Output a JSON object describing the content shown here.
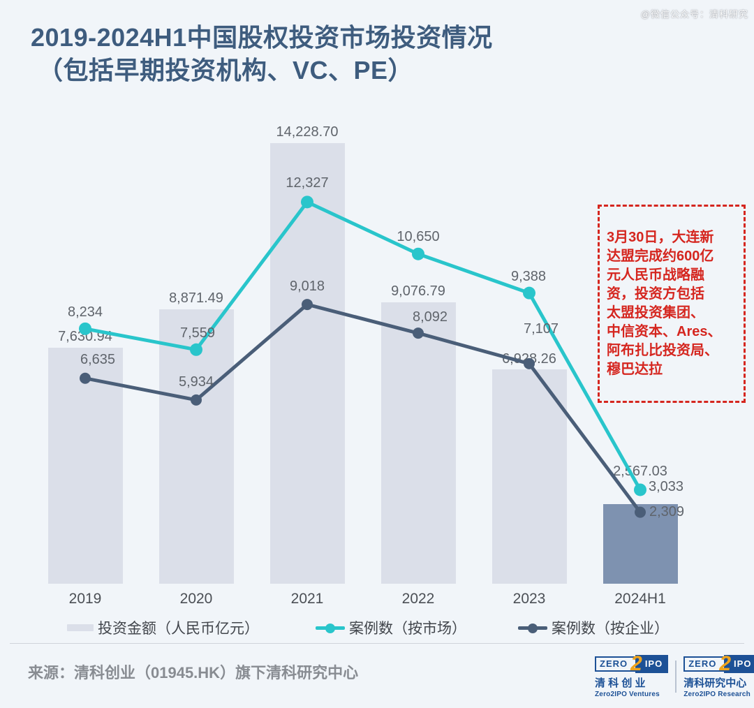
{
  "watermark": "@微信公众号：清科研究",
  "title": {
    "line1": "2019-2024H1中国股权投资市场投资情况",
    "line2": "（包括早期投资机构、VC、PE）"
  },
  "chart_data": {
    "type": "combo: bar + 2 lines",
    "categories": [
      "2019",
      "2020",
      "2021",
      "2022",
      "2023",
      "2024H1"
    ],
    "series": [
      {
        "name": "投资金额（人民币亿元）",
        "type": "bar",
        "values": [
          7630.94,
          8871.49,
          14228.7,
          9076.79,
          6928.26,
          2567.03
        ],
        "labels": [
          "7,630.94",
          "8,871.49",
          "14,228.70",
          "9,076.79",
          "6,928.26",
          "2,567.03"
        ]
      },
      {
        "name": "案例数（按市场）",
        "type": "line",
        "values": [
          8234,
          7559,
          12327,
          10650,
          9388,
          3033
        ],
        "labels": [
          "8,234",
          "7,559",
          "12,327",
          "10,650",
          "9,388",
          "3,033"
        ]
      },
      {
        "name": "案例数（按企业）",
        "type": "line",
        "values": [
          6635,
          5934,
          9018,
          8092,
          7107,
          2309
        ],
        "labels": [
          "6,635",
          "5,934",
          "9,018",
          "8,092",
          "7,107",
          "2,309"
        ]
      }
    ],
    "ylim": [
      0,
      14228.7
    ],
    "grid": false,
    "axes_visible": false,
    "legend_position": "bottom"
  },
  "annotation": {
    "text": "3月30日，大连新\n达盟完成约600亿\n元人民币战略融\n资，投资方包括\n太盟投资集团、\n中信资本、Ares、\n阿布扎比投资局、\n穆巴达拉"
  },
  "legend": {
    "items": [
      {
        "label": "投资金额（人民币亿元）"
      },
      {
        "label": "案例数（按市场）"
      },
      {
        "label": "案例数（按企业）"
      }
    ]
  },
  "source": "来源：清科创业（01945.HK）旗下清科研究中心",
  "logos": [
    {
      "zero": "ZERO",
      "two": "2",
      "ipo": "IPO",
      "cn": "清 科 创 业",
      "en": "Zero2IPO Ventures"
    },
    {
      "zero": "ZERO",
      "two": "2",
      "ipo": "IPO",
      "cn": "清科研究中心",
      "en": "Zero2IPO Research"
    }
  ],
  "colors": {
    "background": "#f1f5f9",
    "title": "#3e5c7e",
    "bar": "#dbdfe9",
    "bar_highlight": "#7e92b0",
    "line_market": "#29c5cb",
    "line_enterprise": "#4a5e78",
    "data_label": "#5f646b",
    "axis_label": "#4b4f55",
    "annotation_red": "#d5261f",
    "source_gray": "#888c92",
    "logo_blue": "#1d5196",
    "logo_gold": "#f0a41c"
  }
}
